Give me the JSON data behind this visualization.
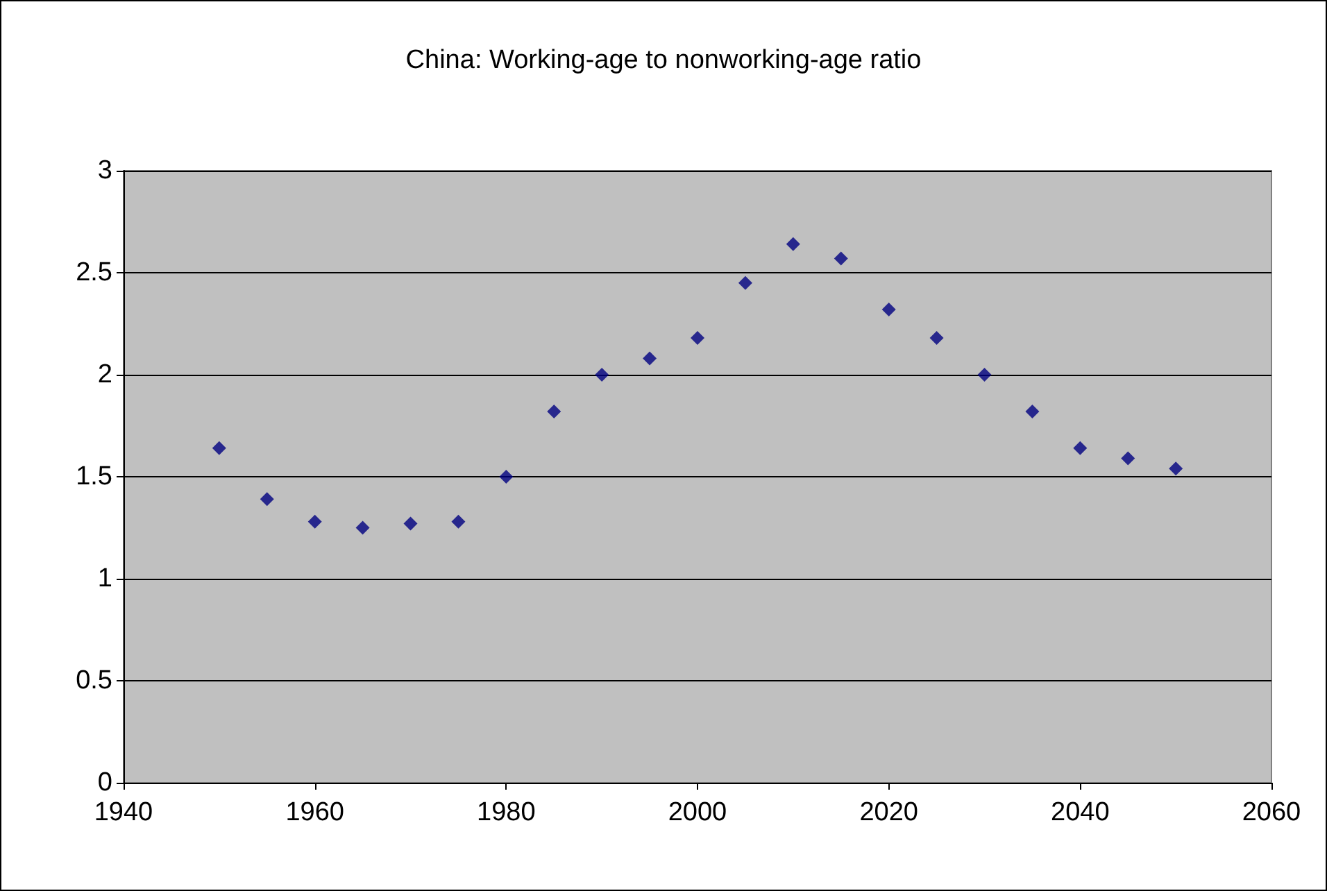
{
  "chart_data": {
    "type": "scatter",
    "title": "China: Working-age to nonworking-age ratio",
    "x": [
      1950,
      1955,
      1960,
      1965,
      1970,
      1975,
      1980,
      1985,
      1990,
      1995,
      2000,
      2005,
      2010,
      2015,
      2020,
      2025,
      2030,
      2035,
      2040,
      2045,
      2050
    ],
    "values": [
      1.64,
      1.39,
      1.28,
      1.25,
      1.27,
      1.28,
      1.5,
      1.82,
      2.0,
      2.08,
      2.18,
      2.45,
      2.64,
      2.57,
      2.32,
      2.18,
      2.0,
      1.82,
      1.64,
      1.59,
      1.54
    ],
    "color": "#000080",
    "marker": "diamond",
    "xlim": [
      1940,
      2060
    ],
    "xticks": [
      1940,
      1960,
      1980,
      2000,
      2020,
      2040,
      2060
    ],
    "ylim": [
      0,
      3
    ],
    "yticks": [
      0,
      0.5,
      1,
      1.5,
      2,
      2.5,
      3
    ],
    "grid": "y"
  }
}
